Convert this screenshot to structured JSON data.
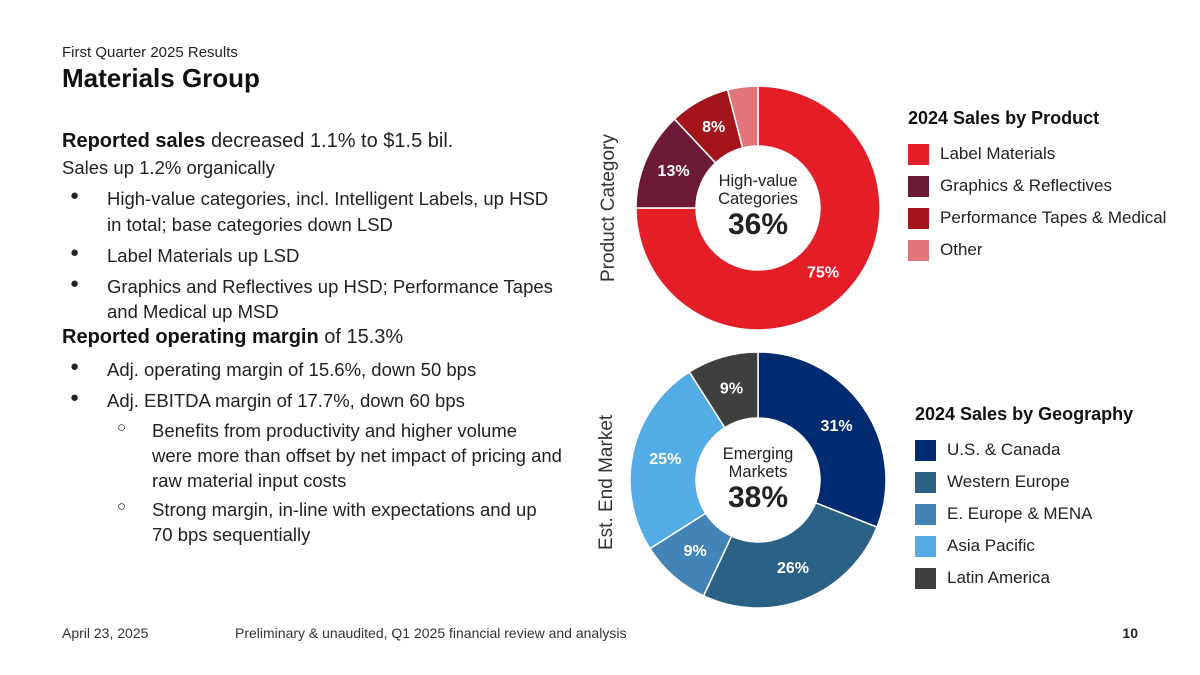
{
  "header": {
    "supertitle": "First Quarter 2025 Results",
    "title": "Materials Group"
  },
  "body": {
    "sales_bold": "Reported sales",
    "sales_rest": " decreased 1.1% to $1.5 bil.",
    "sales_line2": "Sales up 1.2% organically",
    "sales_bullets": [
      "High-value categories, incl. Intelligent Labels, up HSD in total; base categories down LSD",
      "Label Materials up LSD",
      "Graphics and Reflectives up HSD; Performance Tapes and Medical up MSD"
    ],
    "margin_bold": "Reported operating margin",
    "margin_rest": " of 15.3%",
    "margin_bullets": [
      "Adj. operating margin of 15.6%, down 50 bps",
      "Adj. EBITDA margin of 17.7%, down 60 bps"
    ],
    "margin_subbullets": [
      "Benefits from productivity and higher volume were more than offset by net impact of pricing and raw material input costs",
      "Strong margin, in-line with expectations and up 70 bps sequentially"
    ]
  },
  "chart_data": [
    {
      "type": "pie",
      "donut": true,
      "side_label": "Product Category",
      "legend_title": "2024 Sales by Product",
      "center_text": [
        "High-value",
        "Categories"
      ],
      "center_value": "36%",
      "start_angle_deg": 0,
      "direction": "clockwise",
      "slices": [
        {
          "name": "Label Materials",
          "value": 75,
          "label": "75%",
          "color": "#E41E26"
        },
        {
          "name": "Graphics & Reflectives",
          "value": 13,
          "label": "13%",
          "color": "#6D1A36"
        },
        {
          "name": "Performance Tapes & Medical",
          "value": 8,
          "label": "8%",
          "color": "#A3151B"
        },
        {
          "name": "Other",
          "value": 4,
          "label": "",
          "color": "#E27579"
        }
      ]
    },
    {
      "type": "pie",
      "donut": true,
      "side_label": "Est. End Market",
      "legend_title": "2024 Sales by Geography",
      "center_text": [
        "Emerging",
        "Markets"
      ],
      "center_value": "38%",
      "start_angle_deg": 0,
      "direction": "clockwise",
      "slices": [
        {
          "name": "U.S. & Canada",
          "value": 31,
          "label": "31%",
          "color": "#002B70"
        },
        {
          "name": "Western Europe",
          "value": 26,
          "label": "26%",
          "color": "#2C6186"
        },
        {
          "name": "E. Europe & MENA",
          "value": 9,
          "label": "9%",
          "color": "#4384B8"
        },
        {
          "name": "Asia Pacific",
          "value": 25,
          "label": "25%",
          "color": "#54ACE5"
        },
        {
          "name": "Latin America",
          "value": 9,
          "label": "9%",
          "color": "#3F3F3F"
        }
      ]
    }
  ],
  "footer": {
    "date": "April 23, 2025",
    "note": "Preliminary & unaudited, Q1 2025 financial review and analysis",
    "page": "10"
  }
}
